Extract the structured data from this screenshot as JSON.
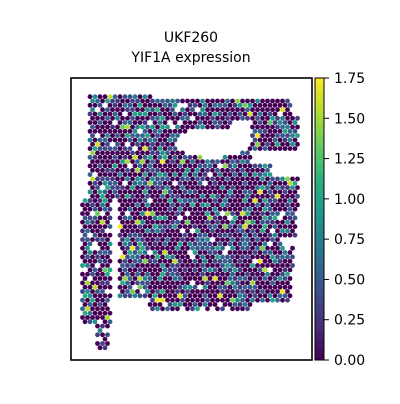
{
  "chart_data": {
    "type": "heatmap",
    "title": "UKF260",
    "subtitle": "YIF1A expression",
    "xlabel": "",
    "ylabel": "",
    "colorbar": {
      "label": "",
      "colormap": "viridis",
      "range": [
        0.0,
        1.75
      ],
      "ticks": [
        0.0,
        0.25,
        0.5,
        0.75,
        1.0,
        1.25,
        1.5,
        1.75
      ],
      "tick_labels": [
        "0.00",
        "0.25",
        "0.50",
        "0.75",
        "1.00",
        "1.25",
        "1.50",
        "1.75"
      ]
    },
    "background_value": 0.0,
    "value_distribution": {
      "fraction_zero": 0.55,
      "fraction_low_0_25_to_0_6": 0.28,
      "fraction_mid_0_7_to_1_1": 0.13,
      "fraction_high_above_1_3": 0.04
    },
    "grid": false,
    "legend": "none"
  },
  "colors": {
    "viridis_0": "#440154",
    "viridis_25": "#3b528b",
    "viridis_50": "#21918c",
    "viridis_75": "#5ec962",
    "viridis_100": "#fde725",
    "axes_border": "#000000"
  }
}
